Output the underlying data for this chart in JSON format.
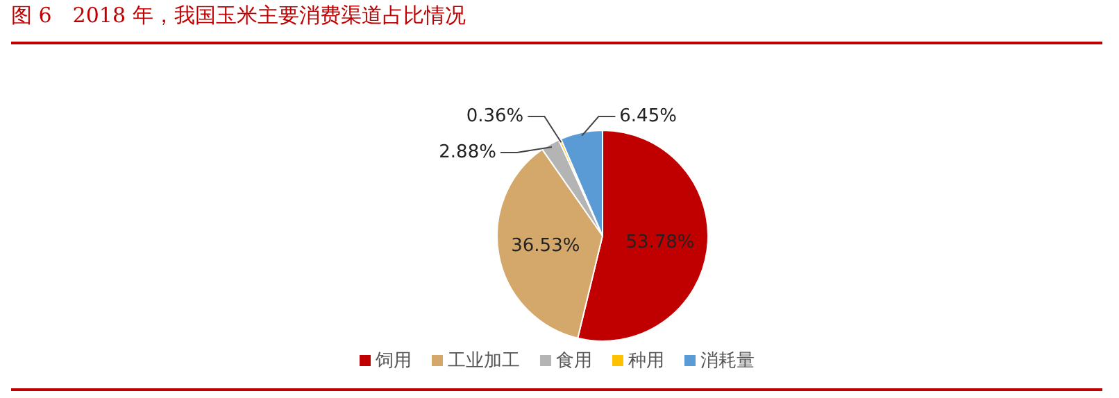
{
  "chart_data": {
    "type": "pie",
    "title": "图 6　2018 年，我国玉米主要消费渠道占比情况",
    "categories": [
      "饲用",
      "工业加工",
      "食用",
      "种用",
      "消耗量"
    ],
    "values": [
      53.78,
      36.53,
      2.88,
      0.36,
      6.45
    ],
    "colors": [
      "#c00000",
      "#d4a86a",
      "#b4b4b4",
      "#ffc000",
      "#5b9bd5"
    ],
    "value_labels": [
      "53.78%",
      "36.53%",
      "2.88%",
      "0.36%",
      "6.45%"
    ],
    "legend": "bottom"
  }
}
